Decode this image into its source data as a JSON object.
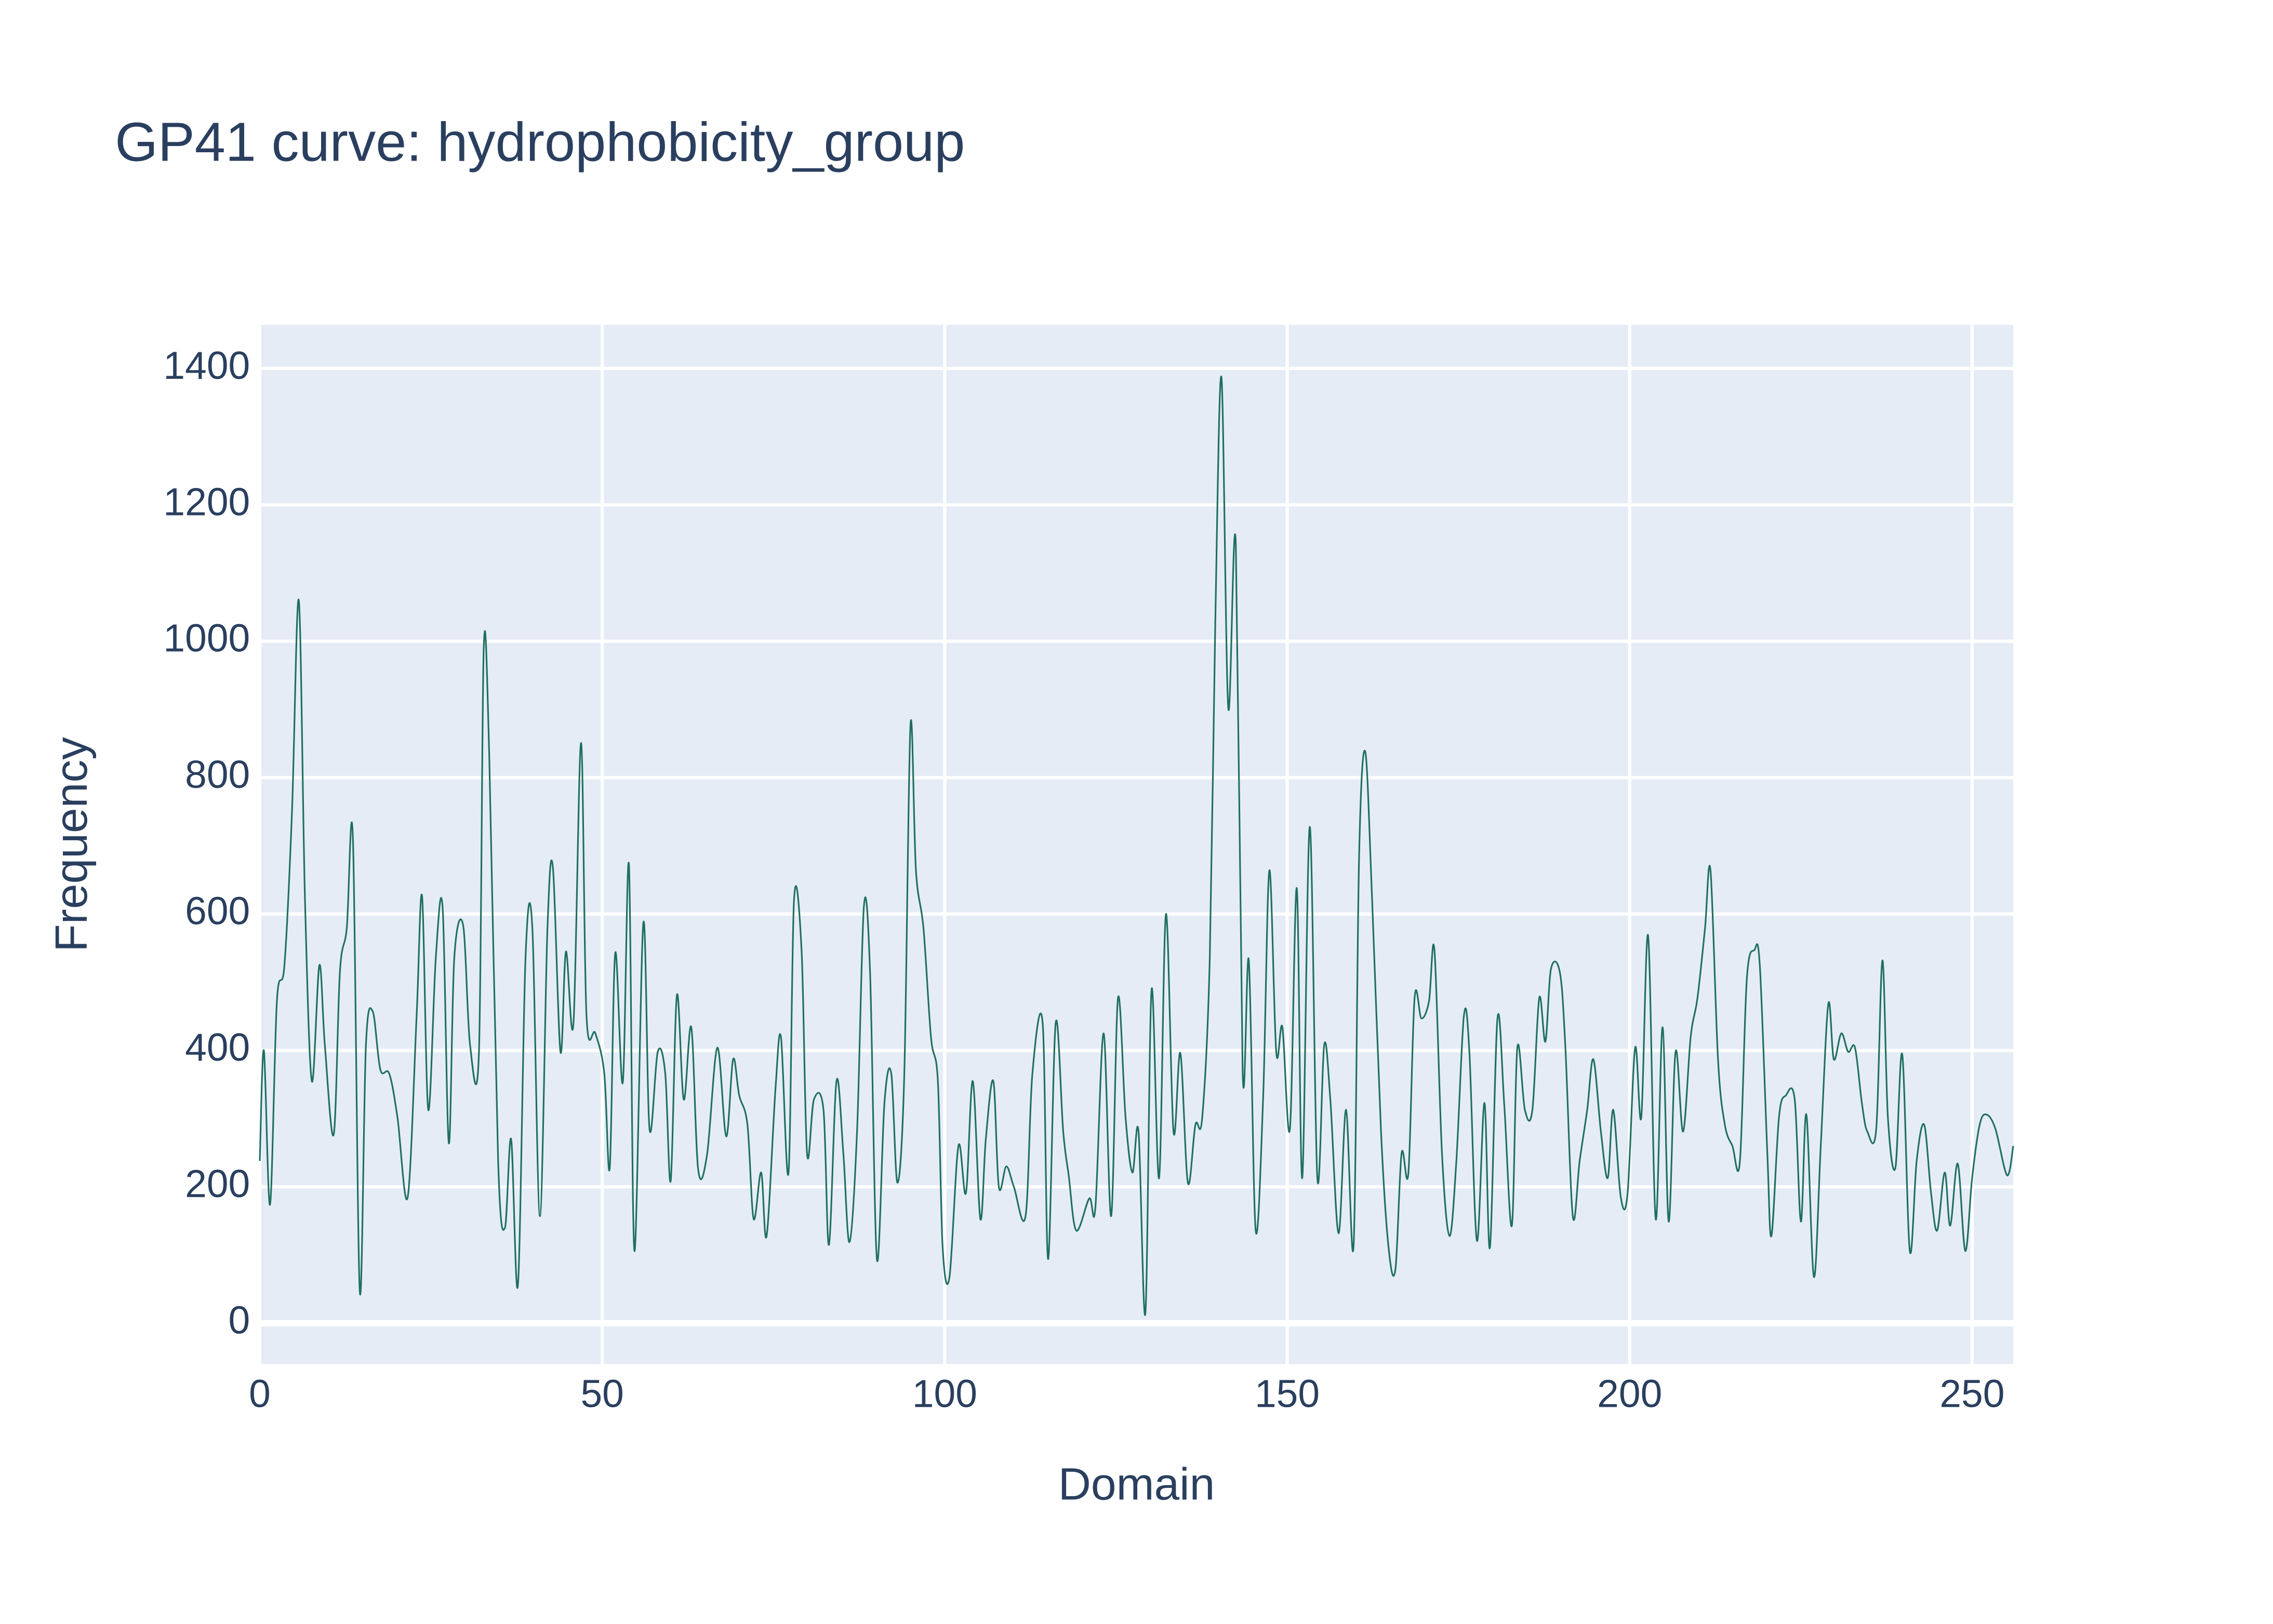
{
  "chart_data": {
    "type": "line",
    "title": "GP41 curve: hydrophobicity_group",
    "x_label": "Domain",
    "y_label": "Frequency",
    "x": [
      0,
      0.6,
      1.5,
      2.5,
      3.6,
      4.7,
      5.7,
      6.6,
      7.6,
      8.7,
      9.5,
      10.8,
      11.7,
      12.7,
      13.6,
      14.6,
      15.5,
      16.5,
      17.6,
      18.9,
      20.1,
      21.6,
      22.9,
      23.7,
      24.6,
      25.7,
      26.7,
      27.6,
      28.4,
      29.7,
      30.7,
      32.0,
      32.7,
      33.5,
      34.8,
      35.8,
      36.7,
      37.7,
      38.8,
      39.8,
      40.9,
      42.0,
      42.8,
      43.9,
      44.7,
      45.8,
      46.9,
      47.7,
      49.0,
      50.3,
      51.1,
      51.9,
      53.0,
      53.9,
      54.7,
      56.0,
      56.9,
      58.1,
      59.2,
      60.0,
      60.9,
      61.9,
      63.0,
      64.0,
      65.3,
      66.8,
      68.1,
      69.1,
      70.0,
      71.2,
      72.1,
      73.2,
      74.0,
      75.3,
      76.1,
      77.2,
      78.0,
      79.1,
      79.9,
      80.9,
      82.3,
      83.1,
      84.2,
      85.2,
      86.1,
      87.2,
      88.2,
      89.1,
      90.1,
      91.2,
      92.2,
      93.1,
      94.1,
      95.0,
      95.8,
      96.9,
      98.0,
      99.0,
      99.7,
      100.7,
      102.0,
      103.1,
      104.1,
      105.2,
      106.0,
      107.1,
      107.9,
      109.0,
      110.1,
      111.8,
      112.8,
      114.3,
      115.1,
      116.2,
      117.3,
      118.1,
      119.2,
      121.1,
      122.0,
      123.2,
      124.3,
      125.3,
      126.4,
      127.4,
      128.3,
      129.3,
      130.2,
      131.3,
      132.3,
      133.4,
      134.4,
      135.5,
      136.6,
      137.6,
      138.7,
      139.5,
      140.4,
      141.4,
      142.5,
      143.5,
      144.4,
      145.4,
      146.5,
      147.4,
      148.4,
      149.3,
      150.4,
      151.4,
      152.2,
      153.3,
      154.4,
      155.4,
      156.3,
      157.5,
      158.6,
      159.7,
      160.5,
      161.4,
      162.4,
      163.7,
      164.8,
      165.8,
      166.7,
      167.7,
      168.6,
      169.6,
      170.7,
      171.5,
      172.6,
      173.7,
      174.7,
      175.8,
      176.6,
      177.7,
      178.8,
      179.6,
      180.7,
      181.7,
      182.8,
      183.6,
      184.7,
      185.8,
      186.8,
      187.7,
      188.5,
      189.8,
      190.6,
      191.7,
      192.7,
      193.8,
      194.7,
      195.8,
      196.8,
      197.6,
      198.7,
      199.7,
      200.8,
      201.7,
      202.7,
      203.8,
      204.8,
      205.7,
      206.7,
      207.8,
      208.9,
      209.9,
      211.0,
      211.8,
      212.9,
      213.9,
      215.0,
      216.1,
      217.1,
      218.2,
      219.0,
      220.1,
      220.7,
      221.8,
      222.8,
      224.1,
      225.0,
      225.8,
      226.9,
      227.9,
      229.0,
      229.8,
      230.9,
      231.9,
      232.9,
      233.9,
      234.7,
      236.0,
      236.9,
      237.7,
      238.8,
      239.8,
      240.9,
      241.9,
      243.0,
      244.0,
      244.9,
      246.0,
      246.8,
      247.9,
      249.0,
      250.0,
      251.1,
      252.1,
      253.4,
      255.1,
      256.0
    ],
    "series": [
      {
        "color": "#1f6f5f",
        "values": [
          238,
          400,
          174,
          472,
          525,
          749,
          1060,
          621,
          355,
          525,
          408,
          277,
          515,
          579,
          711,
          47,
          408,
          457,
          372,
          366,
          302,
          185,
          451,
          626,
          313,
          536,
          609,
          264,
          536,
          583,
          408,
          398,
          991,
          834,
          238,
          140,
          270,
          57,
          536,
          579,
          157,
          579,
          668,
          398,
          545,
          440,
          851,
          451,
          425,
          366,
          228,
          543,
          353,
          672,
          106,
          587,
          285,
          398,
          366,
          209,
          481,
          328,
          434,
          226,
          247,
          404,
          274,
          387,
          334,
          291,
          153,
          221,
          128,
          345,
          419,
          221,
          621,
          547,
          249,
          328,
          313,
          115,
          355,
          249,
          119,
          281,
          611,
          515,
          94,
          323,
          366,
          206,
          366,
          877,
          664,
          579,
          419,
          355,
          111,
          68,
          260,
          191,
          355,
          153,
          270,
          355,
          200,
          230,
          200,
          157,
          366,
          440,
          94,
          440,
          281,
          217,
          136,
          183,
          170,
          425,
          157,
          477,
          302,
          221,
          281,
          15,
          489,
          213,
          600,
          281,
          396,
          206,
          291,
          302,
          536,
          1026,
          1387,
          902,
          1143,
          366,
          532,
          136,
          334,
          664,
          398,
          434,
          285,
          638,
          213,
          728,
          213,
          408,
          328,
          132,
          313,
          115,
          685,
          838,
          621,
          281,
          111,
          79,
          249,
          221,
          477,
          447,
          472,
          547,
          249,
          128,
          238,
          451,
          398,
          121,
          323,
          111,
          447,
          319,
          143,
          404,
          313,
          313,
          477,
          413,
          519,
          515,
          408,
          157,
          238,
          313,
          387,
          281,
          213,
          313,
          185,
          191,
          404,
          302,
          568,
          153,
          434,
          149,
          398,
          281,
          419,
          477,
          579,
          664,
          387,
          291,
          260,
          238,
          504,
          547,
          525,
          249,
          128,
          302,
          334,
          328,
          149,
          306,
          68,
          260,
          468,
          387,
          425,
          398,
          404,
          323,
          281,
          285,
          532,
          302,
          228,
          394,
          106,
          238,
          291,
          191,
          136,
          221,
          143,
          234,
          106,
          213,
          291,
          306,
          285,
          217,
          260
        ]
      }
    ],
    "xlim": [
      0,
      256
    ],
    "ylim": [
      -60,
      1464
    ],
    "xticks": [
      0,
      50,
      100,
      150,
      200,
      250
    ],
    "yticks": [
      0,
      200,
      400,
      600,
      800,
      1000,
      1200,
      1400
    ],
    "grid": true
  }
}
